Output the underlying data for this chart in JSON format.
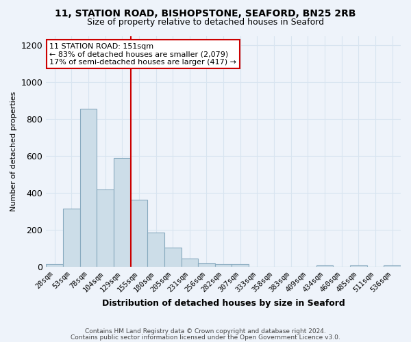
{
  "title": "11, STATION ROAD, BISHOPSTONE, SEAFORD, BN25 2RB",
  "subtitle": "Size of property relative to detached houses in Seaford",
  "xlabel": "Distribution of detached houses by size in Seaford",
  "ylabel": "Number of detached properties",
  "footnote1": "Contains HM Land Registry data © Crown copyright and database right 2024.",
  "footnote2": "Contains public sector information licensed under the Open Government Licence v3.0.",
  "categories": [
    "28sqm",
    "53sqm",
    "78sqm",
    "104sqm",
    "129sqm",
    "155sqm",
    "180sqm",
    "205sqm",
    "231sqm",
    "256sqm",
    "282sqm",
    "307sqm",
    "333sqm",
    "358sqm",
    "383sqm",
    "409sqm",
    "434sqm",
    "460sqm",
    "485sqm",
    "511sqm",
    "536sqm"
  ],
  "values": [
    15,
    315,
    855,
    420,
    590,
    365,
    185,
    105,
    45,
    20,
    15,
    15,
    0,
    0,
    0,
    0,
    10,
    0,
    10,
    0,
    10
  ],
  "bar_color": "#ccdde8",
  "bar_edge_color": "#88aabf",
  "vline_position": 4.5,
  "annotation_title": "11 STATION ROAD: 151sqm",
  "annotation_line1": "← 83% of detached houses are smaller (2,079)",
  "annotation_line2": "17% of semi-detached houses are larger (417) →",
  "annotation_box_color": "#ffffff",
  "annotation_box_edge_color": "#cc0000",
  "vline_color": "#cc0000",
  "ylim": [
    0,
    1250
  ],
  "yticks": [
    0,
    200,
    400,
    600,
    800,
    1000,
    1200
  ],
  "background_color": "#eef3fa",
  "grid_color": "#d8e4f0",
  "title_fontsize": 10,
  "subtitle_fontsize": 9
}
